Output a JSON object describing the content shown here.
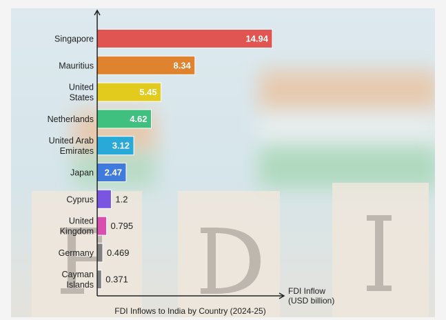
{
  "chart_data": {
    "type": "bar",
    "orientation": "horizontal",
    "title": "FDI Inflows to India by Country (2024-25)",
    "xlabel": [
      "FDI Inflow",
      "(USD billion)"
    ],
    "ylabel": "",
    "categories": [
      [
        "Singapore"
      ],
      [
        "Mauritius"
      ],
      [
        "United",
        "States"
      ],
      [
        "Netherlands"
      ],
      [
        "United Arab",
        "Emirates"
      ],
      [
        "Japan"
      ],
      [
        "Cyprus"
      ],
      [
        "United",
        "Kingdom"
      ],
      [
        "Germany"
      ],
      [
        "Cayman",
        "Islands"
      ]
    ],
    "values": [
      14.94,
      8.34,
      5.45,
      4.62,
      3.12,
      2.47,
      1.2,
      0.795,
      0.469,
      0.371
    ],
    "labels": [
      "14.94",
      "8.34",
      "5.45",
      "4.62",
      "3.12",
      "2.47",
      "1.2",
      "0.795",
      "0.469",
      "0.371"
    ],
    "colors": [
      "#e05552",
      "#e0832e",
      "#e2cb1c",
      "#3fc07e",
      "#28a9d8",
      "#3f7bdc",
      "#7a55e2",
      "#d94fb0",
      "#808080",
      "#808080"
    ],
    "xlim": [
      0,
      15
    ],
    "grid": false
  },
  "background_letters": [
    "F",
    "D",
    "I"
  ]
}
